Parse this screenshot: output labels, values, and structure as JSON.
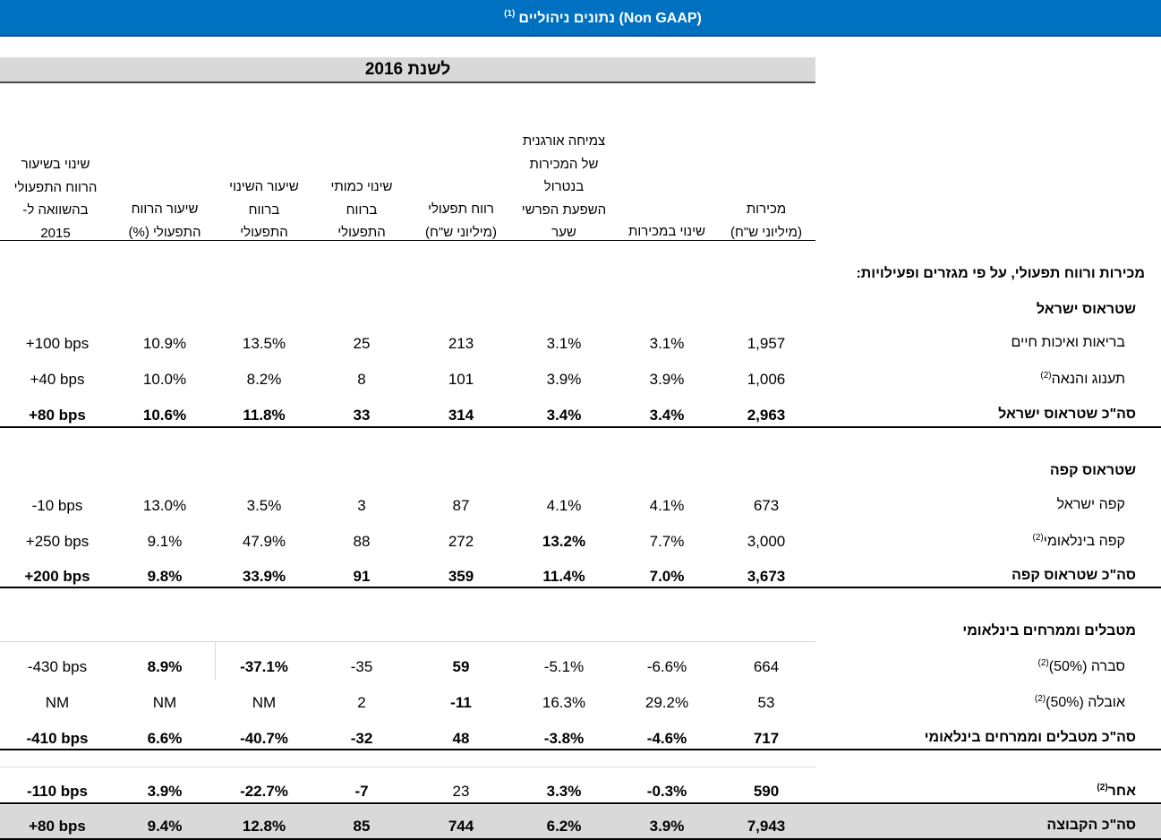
{
  "title": {
    "text": "נתונים ניהוליים (Non GAAP)",
    "footnote": "(1)"
  },
  "year_label": "לשנת 2016",
  "columns": {
    "sales": [
      "מכירות",
      "(מיליוני ש\"ח)"
    ],
    "sales_change": [
      "שינוי במכירות"
    ],
    "organic_growth": [
      "צמיחה אורגנית",
      "של המכירות",
      "בנטרול",
      "השפעת הפרשי",
      "שער"
    ],
    "op_profit": [
      "רווח תפעולי",
      "(מיליוני ש\"ח)"
    ],
    "op_profit_change_abs": [
      "שינוי כמותי",
      "ברווח",
      "התפעולי"
    ],
    "op_profit_change_pct": [
      "שיעור השינוי",
      "ברווח",
      "התפעולי"
    ],
    "op_margin": [
      "שיעור הרווח",
      "התפעולי (%)"
    ],
    "margin_change": [
      "שינוי בשיעור",
      "הרווח התפעולי",
      "בהשוואה ל-",
      "2015"
    ]
  },
  "intro": "מכירות ורווח תפעולי, על פי מגזרים ופעילויות:",
  "sections": {
    "israel": "שטראוס ישראל",
    "coffee": "שטראוס קפה",
    "intl": "מטבלים וממרחים בינלאומי"
  },
  "rows": {
    "health": {
      "label": "בריאות ואיכות חיים",
      "note": "",
      "sales": "1,957",
      "sales_change": "3.1%",
      "organic": "3.1%",
      "op_profit": "213",
      "op_change": "25",
      "op_change_pct": "13.5%",
      "op_margin": "10.9%",
      "margin_change": "+100 bps"
    },
    "indulgence": {
      "label": "תענוג והנאה",
      "note": "(2)",
      "sales": "1,006",
      "sales_change": "3.9%",
      "organic": "3.9%",
      "op_profit": "101",
      "op_change": "8",
      "op_change_pct": "8.2%",
      "op_margin": "10.0%",
      "margin_change": "+40 bps"
    },
    "israel_total": {
      "label": "סה\"כ שטראוס ישראל",
      "note": "",
      "sales": "2,963",
      "sales_change": "3.4%",
      "organic": "3.4%",
      "op_profit": "314",
      "op_change": "33",
      "op_change_pct": "11.8%",
      "op_margin": "10.6%",
      "margin_change": "+80 bps"
    },
    "coffee_il": {
      "label": "קפה ישראל",
      "note": "",
      "sales": "673",
      "sales_change": "4.1%",
      "organic": "4.1%",
      "op_profit": "87",
      "op_change": "3",
      "op_change_pct": "3.5%",
      "op_margin": "13.0%",
      "margin_change": "-10 bps"
    },
    "coffee_intl": {
      "label": "קפה בינלאומי",
      "note": "(2)",
      "sales": "3,000",
      "sales_change": "7.7%",
      "organic": "13.2%",
      "op_profit": "272",
      "op_change": "88",
      "op_change_pct": "47.9%",
      "op_margin": "9.1%",
      "margin_change": "+250 bps"
    },
    "coffee_total": {
      "label": "סה\"כ שטראוס קפה",
      "note": "",
      "sales": "3,673",
      "sales_change": "7.0%",
      "organic": "11.4%",
      "op_profit": "359",
      "op_change": "91",
      "op_change_pct": "33.9%",
      "op_margin": "9.8%",
      "margin_change": "+200 bps"
    },
    "sabra": {
      "label": "סברה (50%)",
      "note": "(2)",
      "sales": "664",
      "sales_change": "-6.6%",
      "organic": "-5.1%",
      "op_profit": "59",
      "op_change": "-35",
      "op_change_pct": "-37.1%",
      "op_margin": "8.9%",
      "margin_change": "-430 bps"
    },
    "obela": {
      "label": "אובלה (50%)",
      "note": "(2)",
      "sales": "53",
      "sales_change": "29.2%",
      "organic": "16.3%",
      "op_profit": "-11",
      "op_change": "2",
      "op_change_pct": "NM",
      "op_margin": "NM",
      "margin_change": "NM"
    },
    "intl_total": {
      "label": "סה\"כ מטבלים וממרחים בינלאומי",
      "note": "",
      "sales": "717",
      "sales_change": "-4.6%",
      "organic": "-3.8%",
      "op_profit": "48",
      "op_change": "-32",
      "op_change_pct": "-40.7%",
      "op_margin": "6.6%",
      "margin_change": "-410 bps"
    },
    "other": {
      "label": "אחר",
      "note": "(2)",
      "sales": "590",
      "sales_change": "-0.3%",
      "organic": "3.3%",
      "op_profit": "23",
      "op_change": "-7",
      "op_change_pct": "-22.7%",
      "op_margin": "3.9%",
      "margin_change": "-110 bps"
    },
    "group_total": {
      "label": "סה\"כ הקבוצה",
      "note": "",
      "sales": "7,943",
      "sales_change": "3.9%",
      "organic": "6.2%",
      "op_profit": "744",
      "op_change": "85",
      "op_change_pct": "12.8%",
      "op_margin": "9.4%",
      "margin_change": "+80 bps"
    }
  }
}
